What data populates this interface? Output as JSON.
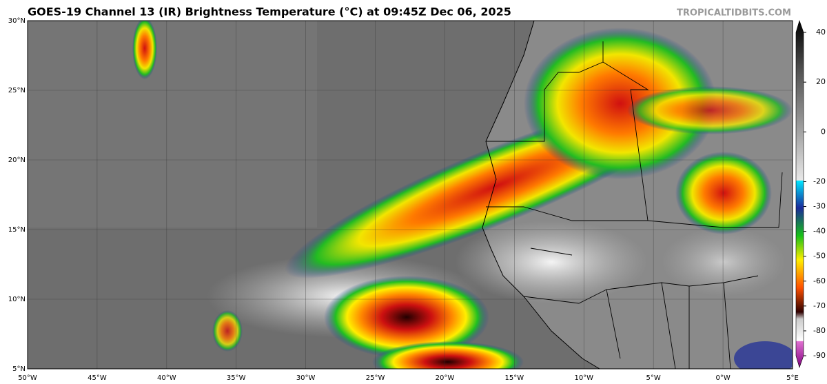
{
  "title": "GOES-19 Channel 13 (IR) Brightness Temperature (°C) at 09:45Z Dec 06, 2025",
  "watermark": "TROPICALTIDBITS.COM",
  "lat_range": [
    5,
    30
  ],
  "lon_range": [
    -50,
    5
  ],
  "latitude_ticks": [
    {
      "value": 30,
      "label": "30°N"
    },
    {
      "value": 25,
      "label": "25°N"
    },
    {
      "value": 20,
      "label": "20°N"
    },
    {
      "value": 15,
      "label": "15°N"
    },
    {
      "value": 10,
      "label": "10°N"
    },
    {
      "value": 5,
      "label": "5°N"
    }
  ],
  "longitude_ticks": [
    {
      "value": -50,
      "label": "50°W"
    },
    {
      "value": -45,
      "label": "45°W"
    },
    {
      "value": -40,
      "label": "40°W"
    },
    {
      "value": -35,
      "label": "35°W"
    },
    {
      "value": -30,
      "label": "30°W"
    },
    {
      "value": -25,
      "label": "25°W"
    },
    {
      "value": -20,
      "label": "20°W"
    },
    {
      "value": -15,
      "label": "15°W"
    },
    {
      "value": -10,
      "label": "10°W"
    },
    {
      "value": -5,
      "label": "5°W"
    },
    {
      "value": 0,
      "label": "0°W"
    },
    {
      "value": 5,
      "label": "5°E"
    }
  ],
  "colorbar": {
    "range": [
      -90,
      40
    ],
    "ticks": [
      40,
      20,
      0,
      -20,
      -30,
      -40,
      -50,
      -60,
      -70,
      -80,
      -90
    ]
  }
}
